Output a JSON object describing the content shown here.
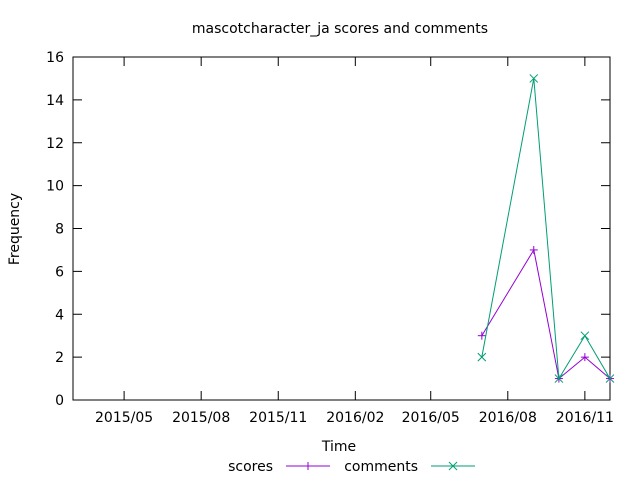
{
  "chart_data": {
    "type": "line",
    "title": "mascotcharacter_ja scores and comments",
    "xlabel": "Time",
    "ylabel": "Frequency",
    "x_tick_labels": [
      "2015/05",
      "2015/08",
      "2015/11",
      "2016/02",
      "2016/05",
      "2016/08",
      "2016/11"
    ],
    "x_tick_dates": [
      "2015-05-01",
      "2015-08-01",
      "2015-11-01",
      "2016-02-01",
      "2016-05-01",
      "2016-08-01",
      "2016-11-01"
    ],
    "xlim": [
      "2015-03-01",
      "2016-12-01"
    ],
    "y_ticks": [
      0,
      2,
      4,
      6,
      8,
      10,
      12,
      14,
      16
    ],
    "ylim": [
      0,
      16
    ],
    "grid": false,
    "legend_position": "bottom-center",
    "series": [
      {
        "name": "scores",
        "color": "#9400d3",
        "marker": "plus",
        "x": [
          "2016-07-01",
          "2016-09-01",
          "2016-10-01",
          "2016-11-01",
          "2016-12-01"
        ],
        "values": [
          3,
          7,
          1,
          2,
          1
        ]
      },
      {
        "name": "comments",
        "color": "#009e73",
        "marker": "cross",
        "x": [
          "2016-07-01",
          "2016-09-01",
          "2016-10-01",
          "2016-11-01",
          "2016-12-01"
        ],
        "values": [
          2,
          15,
          1,
          3,
          1
        ]
      }
    ]
  }
}
